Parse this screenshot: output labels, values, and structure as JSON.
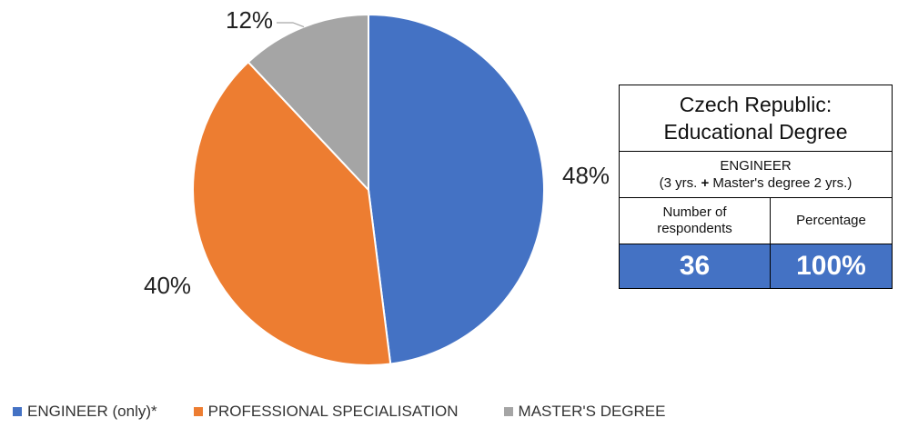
{
  "chart_data": {
    "type": "pie",
    "slices": [
      {
        "label": "ENGINEER (only)*",
        "value": 48,
        "display": "48%",
        "color": "#4472c4"
      },
      {
        "label": "PROFESSIONAL SPECIALISATION",
        "value": 40,
        "display": "40%",
        "color": "#ed7d31"
      },
      {
        "label": "MASTER'S DEGREE",
        "value": 12,
        "display": "12%",
        "color": "#a5a5a5"
      }
    ],
    "legend_position": "bottom"
  },
  "summary_table": {
    "title_line1": "Czech Republic:",
    "title_line2": "Educational Degree",
    "subtitle_line1": "ENGINEER",
    "subtitle_pre": "(3 yrs. ",
    "subtitle_plus": "+",
    "subtitle_post": " Master's degree 2 yrs.)",
    "col1_header_line1": "Number of",
    "col1_header_line2": "respondents",
    "col2_header": "Percentage",
    "col1_value": "36",
    "col2_value": "100%",
    "value_bg_color": "#4472c4"
  }
}
